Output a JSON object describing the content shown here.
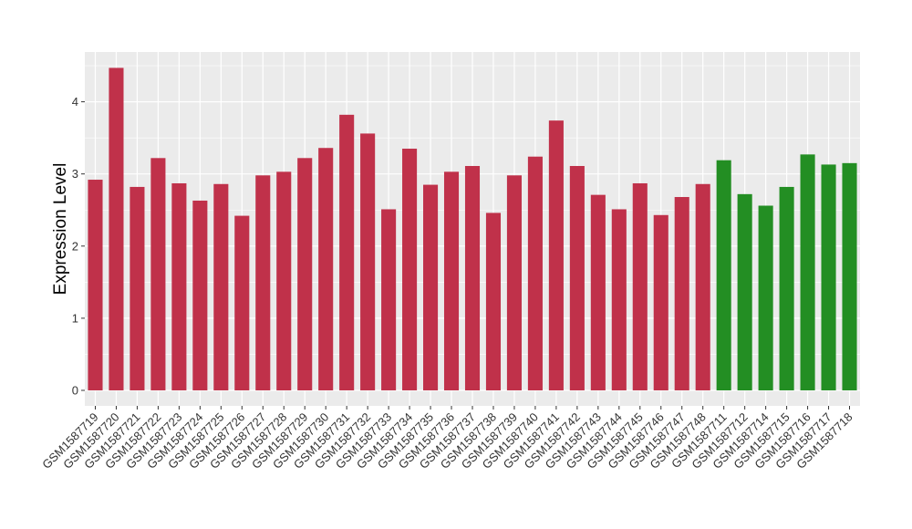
{
  "chart_data": {
    "type": "bar",
    "title": "",
    "xlabel": "",
    "ylabel": "Expression Level",
    "ylim": [
      0,
      4.6
    ],
    "yticks": [
      0,
      1,
      2,
      3,
      4
    ],
    "grid": true,
    "legend": "none",
    "colors": {
      "groupA": "#C0314A",
      "groupB": "#238E23",
      "panel": "#EBEBEB",
      "grid": "#FFFFFF"
    },
    "categories": [
      "GSM1587719",
      "GSM1587720",
      "GSM1587721",
      "GSM1587722",
      "GSM1587723",
      "GSM1587724",
      "GSM1587725",
      "GSM1587726",
      "GSM1587727",
      "GSM1587728",
      "GSM1587729",
      "GSM1587730",
      "GSM1587731",
      "GSM1587732",
      "GSM1587733",
      "GSM1587734",
      "GSM1587735",
      "GSM1587736",
      "GSM1587737",
      "GSM1587738",
      "GSM1587739",
      "GSM1587740",
      "GSM1587741",
      "GSM1587742",
      "GSM1587743",
      "GSM1587744",
      "GSM1587745",
      "GSM1587746",
      "GSM1587747",
      "GSM1587748",
      "GSM1587711",
      "GSM1587712",
      "GSM1587714",
      "GSM1587715",
      "GSM1587716",
      "GSM1587717",
      "GSM1587718"
    ],
    "values": [
      2.92,
      4.47,
      2.82,
      3.22,
      2.87,
      2.63,
      2.86,
      2.42,
      2.98,
      3.03,
      3.22,
      3.36,
      3.82,
      3.56,
      2.51,
      3.35,
      2.85,
      3.03,
      3.11,
      2.46,
      2.98,
      3.24,
      3.74,
      3.11,
      2.71,
      2.51,
      2.87,
      2.43,
      2.68,
      2.86,
      3.19,
      2.72,
      2.56,
      2.82,
      3.27,
      3.13,
      3.15
    ],
    "groups": [
      "groupA",
      "groupA",
      "groupA",
      "groupA",
      "groupA",
      "groupA",
      "groupA",
      "groupA",
      "groupA",
      "groupA",
      "groupA",
      "groupA",
      "groupA",
      "groupA",
      "groupA",
      "groupA",
      "groupA",
      "groupA",
      "groupA",
      "groupA",
      "groupA",
      "groupA",
      "groupA",
      "groupA",
      "groupA",
      "groupA",
      "groupA",
      "groupA",
      "groupA",
      "groupA",
      "groupB",
      "groupB",
      "groupB",
      "groupB",
      "groupB",
      "groupB",
      "groupB"
    ]
  }
}
